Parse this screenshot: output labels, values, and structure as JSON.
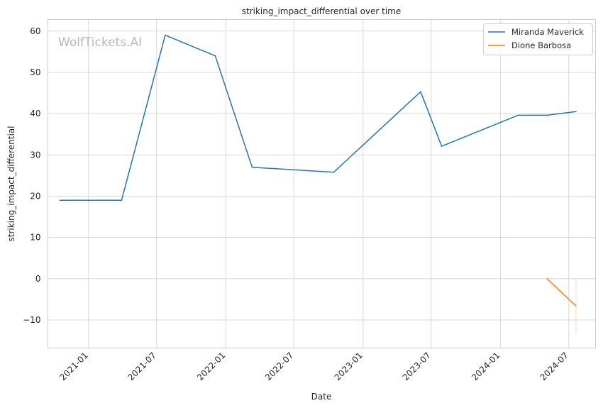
{
  "chart_data": {
    "type": "line",
    "title": "striking_impact_differential over time",
    "xlabel": "Date",
    "ylabel": "striking_impact_differential",
    "x_axis_kind": "date",
    "xlim": [
      "2020-09-15",
      "2024-09-10"
    ],
    "ylim": [
      -16.8,
      62.8
    ],
    "x_ticks": [
      "2021-01",
      "2021-07",
      "2022-01",
      "2022-07",
      "2023-01",
      "2023-07",
      "2024-01",
      "2024-07"
    ],
    "y_ticks": [
      -10,
      0,
      10,
      20,
      30,
      40,
      50,
      60
    ],
    "grid": true,
    "legend_position": "top-right",
    "watermark": "WolfTickets.AI",
    "colors": {
      "series_1": "#1f77b4",
      "series_2": "#ff7f0e",
      "grid": "#d9d9d9"
    },
    "series": [
      {
        "name": "Miranda Maverick",
        "points": [
          {
            "x": "2020-10-17",
            "y": 19.0
          },
          {
            "x": "2021-03-30",
            "y": 19.0
          },
          {
            "x": "2021-07-24",
            "y": 59.0
          },
          {
            "x": "2021-12-04",
            "y": 54.0
          },
          {
            "x": "2022-03-12",
            "y": 27.0
          },
          {
            "x": "2022-10-15",
            "y": 25.8
          },
          {
            "x": "2023-06-03",
            "y": 45.3
          },
          {
            "x": "2023-07-29",
            "y": 32.1
          },
          {
            "x": "2024-02-17",
            "y": 39.6
          },
          {
            "x": "2024-05-04",
            "y": 39.6
          },
          {
            "x": "2024-07-20",
            "y": 40.5
          }
        ]
      },
      {
        "name": "Dione Barbosa",
        "points": [
          {
            "x": "2024-05-04",
            "y": 0.0
          },
          {
            "x": "2024-07-20",
            "y": -6.6
          }
        ],
        "band": {
          "x": "2024-07-20",
          "low": -13.2,
          "high": 0.0
        }
      }
    ]
  }
}
